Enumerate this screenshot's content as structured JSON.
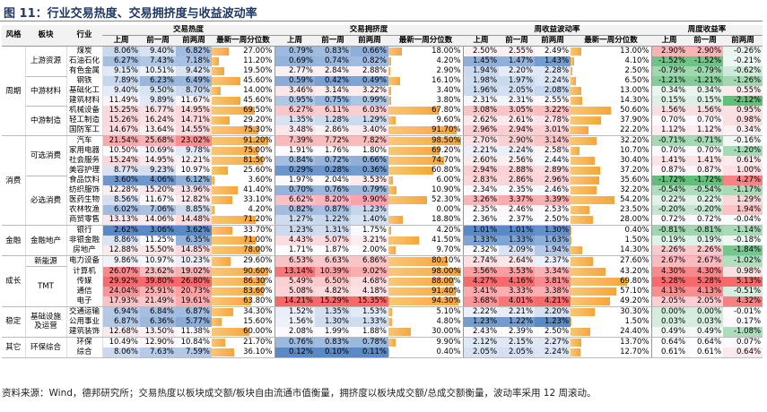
{
  "title": "图 11：行业交易热度、交易拥挤度与收益波动率",
  "headers": {
    "top": [
      "风格",
      "板块",
      "行业",
      "交易热度",
      "交易拥挤度",
      "周收益波动率",
      "周度收益率"
    ],
    "sub": [
      "上周",
      "前一周",
      "前两周",
      "最新一周分位数",
      "上周",
      "前一周",
      "前两周",
      "最新一周分位数",
      "上周",
      "前一周",
      "前两周",
      "最新一周分位数",
      "上周",
      "前一周",
      "前两周"
    ]
  },
  "groups": [
    {
      "style": "周期",
      "sectors": [
        {
          "name": "上游资源",
          "rows": [
            {
              "industry": "煤炭",
              "cells": [
                "8.06%",
                "9.40%",
                "6.82%",
                "27.00%",
                "0.79%",
                "0.83%",
                "0.66%",
                "18.00%",
                "2.50%",
                "2.55%",
                "2.49%",
                "13.00%",
                "2.90%",
                "2.90%",
                "-0.26%"
              ]
            },
            {
              "industry": "石油石化",
              "cells": [
                "6.27%",
                "7.43%",
                "7.18%",
                "11.20%",
                "0.69%",
                "0.74%",
                "0.82%",
                "4.20%",
                "1.45%",
                "1.47%",
                "1.43%",
                "4.10%",
                "-1.52%",
                "-1.52%",
                "-0.21%"
              ]
            },
            {
              "industry": "有色金属",
              "cells": [
                "9.15%",
                "10.51%",
                "9.42%",
                "19.50%",
                "2.77%",
                "2.84%",
                "2.88%",
                "2.90%",
                "1.94%",
                "2.20%",
                "2.28%",
                "2.50%",
                "-0.79%",
                "-0.79%",
                "-0.62%"
              ]
            }
          ]
        },
        {
          "name": "中游材料",
          "rows": [
            {
              "industry": "钢铁",
              "cells": [
                "7.89%",
                "6.23%",
                "6.49%",
                "45.60%",
                "0.59%",
                "0.42%",
                "0.49%",
                "16.10%",
                "1.98%",
                "1.97%",
                "2.24%",
                "6.50%",
                "-1.21%",
                "-1.21%",
                "-1.26%"
              ]
            },
            {
              "industry": "基础化工",
              "cells": [
                "9.40%",
                "9.50%",
                "8.70%",
                "14.00%",
                "3.46%",
                "3.14%",
                "3.22%",
                "3.40%",
                "1.96%",
                "2.05%",
                "2.08%",
                "13.00%",
                "0.34%",
                "0.34%",
                "0.55%"
              ]
            },
            {
              "industry": "建筑材料",
              "cells": [
                "11.49%",
                "9.89%",
                "11.67%",
                "45.60%",
                "0.95%",
                "0.75%",
                "0.99%",
                "3.80%",
                "2.31%",
                "2.31%",
                "2.55%",
                "14.30%",
                "0.15%",
                "0.15%",
                "-2.12%"
              ]
            }
          ]
        },
        {
          "name": "中游制造",
          "rows": [
            {
              "industry": "机械设备",
              "cells": [
                "15.25%",
                "16.77%",
                "14.95%",
                "69.50%",
                "6.27%",
                "6.11%",
                "6.03%",
                "67.80%",
                "3.08%",
                "3.05%",
                "3.22%",
                "50.60%",
                "1.56%",
                "1.56%",
                "0.95%"
              ]
            },
            {
              "industry": "轻工制造",
              "cells": [
                "15.26%",
                "16.24%",
                "14.71%",
                "29.20%",
                "1.35%",
                "1.28%",
                "1.29%",
                "9.60%",
                "2.62%",
                "2.61%",
                "2.78%",
                "37.90%",
                "0.70%",
                "0.70%",
                "0.98%"
              ]
            },
            {
              "industry": "国防军工",
              "cells": [
                "14.67%",
                "13.64%",
                "14.55%",
                "75.30%",
                "3.48%",
                "2.86%",
                "3.40%",
                "91.70%",
                "2.96%",
                "2.94%",
                "3.01%",
                "22.20%",
                "1.12%",
                "1.12%",
                "0.34%"
              ]
            }
          ]
        }
      ]
    },
    {
      "style": "消费",
      "sectors": [
        {
          "name": "可选消费",
          "rows": [
            {
              "industry": "汽车",
              "cells": [
                "21.54%",
                "25.68%",
                "23.02%",
                "91.20%",
                "7.39%",
                "7.72%",
                "7.82%",
                "98.50%",
                "2.70%",
                "2.90%",
                "3.14%",
                "32.20%",
                "-0.71%",
                "-0.71%",
                "-0.16%"
              ]
            },
            {
              "industry": "家用电器",
              "cells": [
                "10.50%",
                "10.69%",
                "9.78%",
                "75.00%",
                "1.91%",
                "1.76%",
                "1.80%",
                "69.20%",
                "2.21%",
                "2.24%",
                "2.58%",
                "10.70%",
                "0.70%",
                "0.70%",
                "-1.20%"
              ]
            },
            {
              "industry": "社会服务",
              "cells": [
                "15.24%",
                "14.95%",
                "12.21%",
                "81.50%",
                "0.84%",
                "0.72%",
                "0.66%",
                "74.70%",
                "2.60%",
                "2.56%",
                "2.44%",
                "30.40%",
                "1.41%",
                "1.41%",
                "0.61%"
              ]
            },
            {
              "industry": "美容护理",
              "cells": [
                "8.77%",
                "9.23%",
                "10.97%",
                "25.60%",
                "0.29%",
                "0.28%",
                "0.36%",
                "60.80%",
                "2.94%",
                "2.88%",
                "2.89%",
                "37.20%",
                "0.87%",
                "0.87%",
                "1.00%"
              ]
            }
          ]
        },
        {
          "name": "必选消费",
          "rows": [
            {
              "industry": "食品饮料",
              "cells": [
                "3.60%",
                "4.06%",
                "6.12%",
                "3.60%",
                "1.97%",
                "2.04%",
                "3.53%",
                "6.00%",
                "2.83%",
                "2.86%",
                "2.96%",
                "35.60%",
                "-1.72%",
                "-1.72%",
                "4.27%"
              ]
            },
            {
              "industry": "纺织服饰",
              "cells": [
                "12.28%",
                "15.20%",
                "13.96%",
                "41.40%",
                "0.70%",
                "0.76%",
                "0.79%",
                "10.90%",
                "2.34%",
                "2.35%",
                "2.46%",
                "32.20%",
                "-0.54%",
                "-0.54%",
                "-1.17%"
              ]
            },
            {
              "industry": "医药生物",
              "cells": [
                "8.56%",
                "11.67%",
                "12.82%",
                "33.10%",
                "6.62%",
                "8.20%",
                "9.90%",
                "52.30%",
                "3.26%",
                "3.37%",
                "3.39%",
                "54.20%",
                "0.22%",
                "0.22%",
                "1.29%"
              ]
            },
            {
              "industry": "农林牧渔",
              "cells": [
                "6.02%",
                "7.06%",
                "8.85%",
                "4.20%",
                "0.82%",
                "0.87%",
                "1.23%",
                "0.00%",
                "2.35%",
                "2.46%",
                "2.53%",
                "23.50%",
                "-0.20%",
                "-0.20%",
                "1.94%"
              ]
            },
            {
              "industry": "商贸零售",
              "cells": [
                "13.13%",
                "14.06%",
                "14.48%",
                "71.20%",
                "1.27%",
                "1.22%",
                "1.40%",
                "18.80%",
                "2.36%",
                "2.37%",
                "2.50%",
                "28.00%",
                "0.72%",
                "0.72%",
                "-0.04%"
              ]
            }
          ]
        }
      ]
    },
    {
      "style": "金融",
      "sectors": [
        {
          "name": "金融地产",
          "rows": [
            {
              "industry": "银行",
              "cells": [
                "2.62%",
                "3.06%",
                "3.62%",
                "33.70%",
                "1.23%",
                "1.31%",
                "1.75%",
                "4.20%",
                "1.01%",
                "1.01%",
                "1.30%",
                "0.40%",
                "-0.81%",
                "-0.81%",
                "-1.14%"
              ]
            },
            {
              "industry": "非银金融",
              "cells": [
                "8.86%",
                "11.25%",
                "6.35%",
                "71.00%",
                "4.43%",
                "5.07%",
                "3.21%",
                "41.50%",
                "1.33%",
                "1.33%",
                "1.63%",
                "1.50%",
                "0.19%",
                "0.19%",
                "-0.18%"
              ]
            },
            {
              "industry": "房地产",
              "cells": [
                "12.88%",
                "15.50%",
                "14.85%",
                "78.00%",
                "1.71%",
                "1.87%",
                "2.00%",
                "9.70%",
                "2.32%",
                "2.09%",
                "1.94%",
                "14.30%",
                "2.26%",
                "2.26%",
                "-1.84%"
              ]
            }
          ]
        }
      ]
    },
    {
      "style": "成长",
      "sectors": [
        {
          "name": "新能源",
          "rows": [
            {
              "industry": "电力设备",
              "cells": [
                "9.86%",
                "10.97%",
                "10.23%",
                "29.60%",
                "6.53%",
                "6.63%",
                "6.86%",
                "80.10%",
                "2.74%",
                "2.64%",
                "2.37%",
                "27.60%",
                "2.67%",
                "2.67%",
                "-1.02%"
              ]
            }
          ]
        },
        {
          "name": "TMT",
          "rows": [
            {
              "industry": "计算机",
              "cells": [
                "26.07%",
                "23.62%",
                "19.02%",
                "90.60%",
                "13.14%",
                "10.39%",
                "9.02%",
                "98.00%",
                "3.56%",
                "3.53%",
                "3.34%",
                "43.20%",
                "4.30%",
                "4.30%",
                "0.98%"
              ]
            },
            {
              "industry": "传媒",
              "cells": [
                "29.92%",
                "39.80%",
                "26.80%",
                "86.30%",
                "5.49%",
                "6.50%",
                "4.68%",
                "88.00%",
                "4.27%",
                "4.16%",
                "3.81%",
                "69.80%",
                "5.28%",
                "5.28%",
                "5.13%"
              ]
            },
            {
              "industry": "通信",
              "cells": [
                "24.04%",
                "25.91%",
                "20.73%",
                "83.60%",
                "5.08%",
                "4.82%",
                "4.18%",
                "91.40%",
                "3.41%",
                "3.33%",
                "3.38%",
                "57.10%",
                "4.13%",
                "4.13%",
                "-0.51%"
              ]
            },
            {
              "industry": "电子",
              "cells": [
                "17.93%",
                "21.49%",
                "19.61%",
                "63.80%",
                "14.21%",
                "15.29%",
                "15.35%",
                "94.30%",
                "3.68%",
                "4.01%",
                "4.21%",
                "49.20%",
                "2.05%",
                "2.05%",
                "4.32%"
              ]
            }
          ]
        }
      ]
    },
    {
      "style": "稳定",
      "sectors": [
        {
          "name": "基础设施及运营",
          "rows": [
            {
              "industry": "交通运输",
              "cells": [
                "6.94%",
                "6.84%",
                "6.87%",
                "34.30%",
                "1.52%",
                "1.35%",
                "1.53%",
                "5.10%",
                "2.22%",
                "2.21%",
                "2.20%",
                "30.30%",
                "0.00%",
                "0.00%",
                "-0.01%"
              ]
            },
            {
              "industry": "公用事业",
              "cells": [
                "6.87%",
                "6.36%",
                "5.77%",
                "15.60%",
                "1.56%",
                "1.30%",
                "1.33%",
                "4.80%",
                "1.23%",
                "1.22%",
                "1.23%",
                "1.50%",
                "0.03%",
                "0.03%",
                "0.17%"
              ]
            },
            {
              "industry": "建筑装饰",
              "cells": [
                "12.68%",
                "13.50%",
                "11.38%",
                "60.00%",
                "2.08%",
                "1.99%",
                "1.88%",
                "30.00%",
                "2.43%",
                "2.39%",
                "2.50%",
                "24.40%",
                "0.49%",
                "0.49%",
                "-1.08%"
              ]
            }
          ]
        }
      ]
    },
    {
      "style": "其它",
      "sectors": [
        {
          "name": "环保综合",
          "rows": [
            {
              "industry": "环保",
              "cells": [
                "10.49%",
                "12.90%",
                "10.84%",
                "21.70%",
                "0.76%",
                "0.83%",
                "0.78%",
                "9.90%",
                "2.12%",
                "2.15%",
                "2.27%",
                "13.70%",
                "0.64%",
                "0.64%",
                "0.07%"
              ]
            },
            {
              "industry": "综合",
              "cells": [
                "8.06%",
                "7.63%",
                "7.59%",
                "36.10%",
                "0.12%",
                "0.10%",
                "0.11%",
                "0.40%",
                "2.05%",
                "2.05%",
                "2.24%",
                "12.70%",
                "0.61%",
                "0.61%",
                "0.64%"
              ]
            }
          ]
        }
      ]
    }
  ],
  "note": "资料来源：Wind，德邦研究所；交易热度以板块成交额/板块自由流通市值衡量，拥挤度以板块成交额/总成交额衡量，波动率采用 12 周滚动。"
}
